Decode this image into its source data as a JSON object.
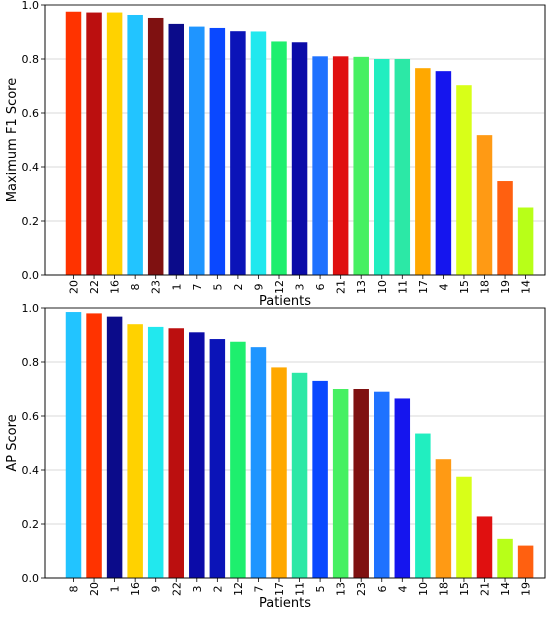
{
  "chart_data": [
    {
      "type": "bar",
      "title": "",
      "xlabel": "Patients",
      "ylabel": "Maximum F1 Score",
      "ylim": [
        0,
        1.0
      ],
      "yticks": [
        "0.0",
        "0.2",
        "0.4",
        "0.6",
        "0.8",
        "1.0"
      ],
      "grid": "horizontal",
      "categories": [
        "20",
        "22",
        "16",
        "8",
        "23",
        "1",
        "7",
        "5",
        "2",
        "9",
        "12",
        "3",
        "6",
        "21",
        "13",
        "10",
        "11",
        "17",
        "4",
        "15",
        "18",
        "19",
        "14"
      ],
      "values": [
        0.975,
        0.972,
        0.972,
        0.963,
        0.952,
        0.93,
        0.92,
        0.915,
        0.903,
        0.902,
        0.865,
        0.862,
        0.81,
        0.81,
        0.808,
        0.8,
        0.8,
        0.766,
        0.755,
        0.703,
        0.518,
        0.348,
        0.25
      ],
      "colors": [
        "#ff3300",
        "#bb0f0f",
        "#ffd200",
        "#22c4ff",
        "#7f1111",
        "#0b0b8a",
        "#1f95ff",
        "#0a48ff",
        "#0b14b8",
        "#21e8ee",
        "#1eef6e",
        "#0b0ba8",
        "#1f72ff",
        "#e01010",
        "#46f062",
        "#21eec0",
        "#2ce8a6",
        "#ffa800",
        "#1515ee",
        "#d8ff18",
        "#ff9a14",
        "#ff6010",
        "#b8ff18"
      ]
    },
    {
      "type": "bar",
      "title": "",
      "xlabel": "Patients",
      "ylabel": "AP Score",
      "ylim": [
        0,
        1.0
      ],
      "yticks": [
        "0.0",
        "0.2",
        "0.4",
        "0.6",
        "0.8",
        "1.0"
      ],
      "grid": "horizontal",
      "categories": [
        "8",
        "20",
        "1",
        "16",
        "9",
        "22",
        "3",
        "2",
        "12",
        "7",
        "17",
        "11",
        "5",
        "13",
        "23",
        "6",
        "4",
        "10",
        "18",
        "15",
        "21",
        "14",
        "19"
      ],
      "values": [
        0.985,
        0.98,
        0.968,
        0.94,
        0.93,
        0.925,
        0.91,
        0.885,
        0.875,
        0.855,
        0.78,
        0.76,
        0.73,
        0.7,
        0.7,
        0.69,
        0.665,
        0.535,
        0.44,
        0.375,
        0.228,
        0.145,
        0.12
      ],
      "colors": [
        "#22c4ff",
        "#ff3300",
        "#0b0b8a",
        "#ffd200",
        "#21e8ee",
        "#bb0f0f",
        "#0b0ba8",
        "#0b14b8",
        "#1eef6e",
        "#1f95ff",
        "#ffa800",
        "#2ce8a6",
        "#0a48ff",
        "#46f062",
        "#7f1111",
        "#1f72ff",
        "#1515ee",
        "#21eec0",
        "#ff9a14",
        "#d8ff18",
        "#e01010",
        "#b8ff18",
        "#ff6010"
      ]
    }
  ]
}
